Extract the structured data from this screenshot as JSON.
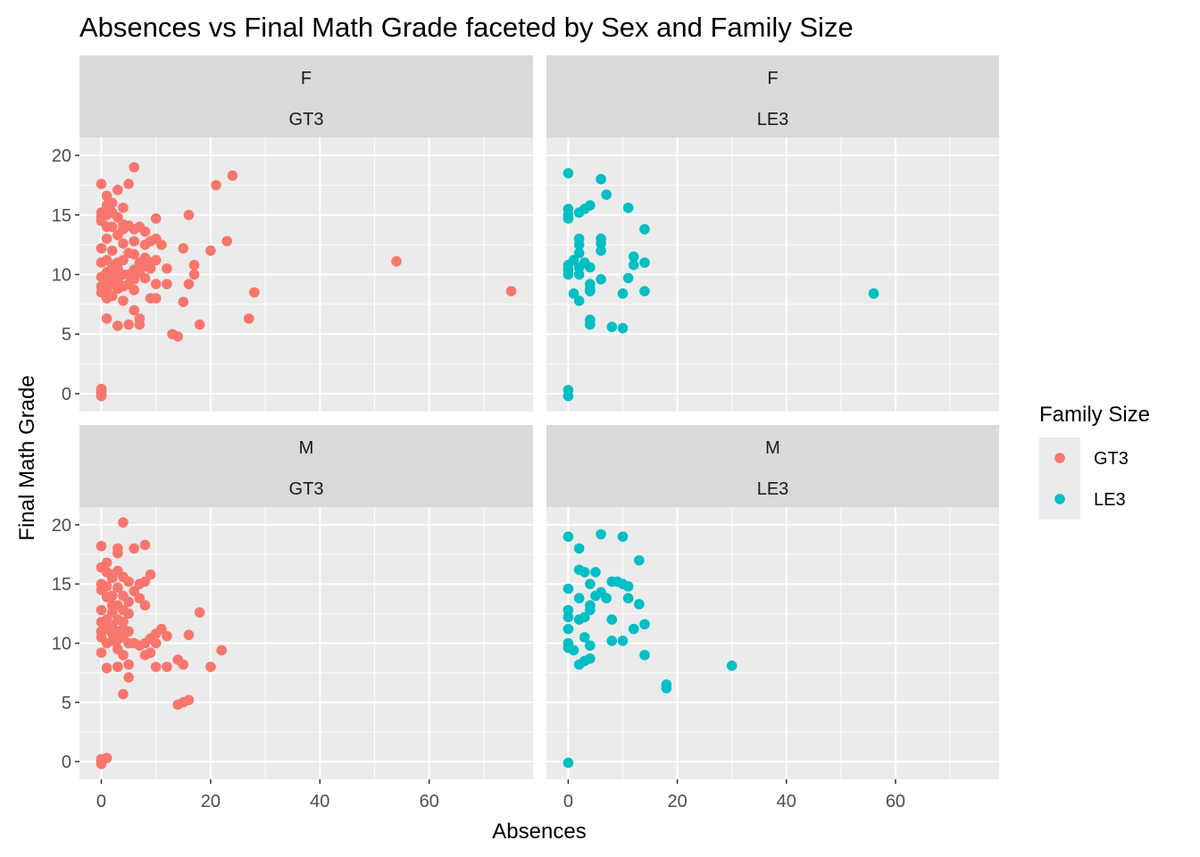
{
  "chart_data": {
    "type": "scatter",
    "title": "Absences vs Final Math Grade faceted by Sex and Family Size",
    "xlabel": "Absences",
    "ylabel": "Final Math Grade",
    "xlim": [
      -4,
      79
    ],
    "ylim": [
      -1.5,
      21.5
    ],
    "x_ticks": [
      0,
      20,
      40,
      60
    ],
    "y_ticks": [
      0,
      5,
      10,
      15,
      20
    ],
    "grid": true,
    "legend": {
      "title": "Family Size",
      "position": "right",
      "entries": [
        {
          "label": "GT3",
          "color": "#F8766D"
        },
        {
          "label": "LE3",
          "color": "#00BFC4"
        }
      ]
    },
    "facets": [
      {
        "sex": "F",
        "famsize": "GT3",
        "color": "#F8766D",
        "points": [
          [
            0,
            0
          ],
          [
            0,
            0.2
          ],
          [
            0,
            -0.2
          ],
          [
            0,
            0.4
          ],
          [
            0,
            12.2
          ],
          [
            0,
            14.8
          ],
          [
            0,
            15.2
          ],
          [
            0,
            9
          ],
          [
            0,
            9.8
          ],
          [
            0,
            11
          ],
          [
            0,
            8.5
          ],
          [
            0,
            17.6
          ],
          [
            0,
            14.5
          ],
          [
            1,
            16.6
          ],
          [
            1,
            15
          ],
          [
            1,
            8
          ],
          [
            1,
            10.2
          ],
          [
            1,
            9.5
          ],
          [
            1,
            6.3
          ],
          [
            1,
            13
          ],
          [
            1,
            14
          ],
          [
            1,
            15.8
          ],
          [
            1,
            11.2
          ],
          [
            1,
            8.8
          ],
          [
            2,
            16
          ],
          [
            2,
            14
          ],
          [
            2,
            10
          ],
          [
            2,
            10.8
          ],
          [
            2,
            12
          ],
          [
            2,
            9.2
          ],
          [
            2,
            8.2
          ],
          [
            2,
            15.2
          ],
          [
            3,
            17.1
          ],
          [
            3,
            11
          ],
          [
            3,
            10.5
          ],
          [
            3,
            14.8
          ],
          [
            3,
            9.6
          ],
          [
            3,
            8.8
          ],
          [
            3,
            5.7
          ],
          [
            3,
            13.3
          ],
          [
            4,
            10
          ],
          [
            4,
            11.2
          ],
          [
            4,
            9
          ],
          [
            4,
            12.6
          ],
          [
            4,
            14.2
          ],
          [
            4,
            7.8
          ],
          [
            4,
            13.8
          ],
          [
            4,
            15.6
          ],
          [
            5,
            11.8
          ],
          [
            5,
            10
          ],
          [
            5,
            5.8
          ],
          [
            5,
            17.6
          ],
          [
            5,
            9.2
          ],
          [
            5,
            14.1
          ],
          [
            6,
            19
          ],
          [
            6,
            13.8
          ],
          [
            6,
            12.8
          ],
          [
            6,
            11.7
          ],
          [
            6,
            10.4
          ],
          [
            6,
            9.6
          ],
          [
            6,
            8.7
          ],
          [
            6,
            7
          ],
          [
            7,
            14
          ],
          [
            7,
            11
          ],
          [
            7,
            10.2
          ],
          [
            7,
            6.3
          ],
          [
            7,
            5.8
          ],
          [
            8,
            12.5
          ],
          [
            8,
            10.7
          ],
          [
            8,
            9.7
          ],
          [
            8,
            13.6
          ],
          [
            8,
            11.4
          ],
          [
            9,
            11
          ],
          [
            9,
            10.5
          ],
          [
            9,
            8
          ],
          [
            9,
            12.8
          ],
          [
            10,
            14.7
          ],
          [
            10,
            13
          ],
          [
            10,
            11.2
          ],
          [
            10,
            9.2
          ],
          [
            10,
            8
          ],
          [
            11,
            12.5
          ],
          [
            12,
            9.2
          ],
          [
            12,
            10.5
          ],
          [
            13,
            5
          ],
          [
            14,
            4.8
          ],
          [
            15,
            12.2
          ],
          [
            15,
            7.7
          ],
          [
            16,
            15
          ],
          [
            16,
            9.2
          ],
          [
            17,
            10.8
          ],
          [
            17,
            10
          ],
          [
            18,
            5.8
          ],
          [
            20,
            12
          ],
          [
            21,
            17.5
          ],
          [
            23,
            12.8
          ],
          [
            24,
            18.3
          ],
          [
            27,
            6.3
          ],
          [
            28,
            8.5
          ],
          [
            54,
            11.1
          ],
          [
            75,
            8.6
          ]
        ]
      },
      {
        "sex": "F",
        "famsize": "LE3",
        "color": "#00BFC4",
        "points": [
          [
            0,
            -0.2
          ],
          [
            0,
            0.3
          ],
          [
            0,
            18.5
          ],
          [
            0,
            15.5
          ],
          [
            0,
            15
          ],
          [
            0,
            14.7
          ],
          [
            0,
            10.8
          ],
          [
            0,
            10
          ],
          [
            0,
            10.4
          ],
          [
            1,
            8.4
          ],
          [
            1,
            11.2
          ],
          [
            2,
            15.2
          ],
          [
            2,
            13
          ],
          [
            2,
            12.5
          ],
          [
            2,
            11.8
          ],
          [
            2,
            10.6
          ],
          [
            2,
            10
          ],
          [
            2,
            7.8
          ],
          [
            3,
            15.5
          ],
          [
            3,
            11
          ],
          [
            4,
            15.8
          ],
          [
            4,
            10.6
          ],
          [
            4,
            9.2
          ],
          [
            4,
            8.8
          ],
          [
            4,
            8.6
          ],
          [
            4,
            6.2
          ],
          [
            4,
            5.8
          ],
          [
            6,
            18
          ],
          [
            6,
            13
          ],
          [
            6,
            12.6
          ],
          [
            6,
            12
          ],
          [
            6,
            9.6
          ],
          [
            7,
            16.7
          ],
          [
            8,
            5.6
          ],
          [
            10,
            5.5
          ],
          [
            10,
            8.4
          ],
          [
            11,
            15.6
          ],
          [
            11,
            9.7
          ],
          [
            12,
            11.5
          ],
          [
            12,
            10.8
          ],
          [
            14,
            13.8
          ],
          [
            14,
            11
          ],
          [
            14,
            8.6
          ],
          [
            56,
            8.4
          ]
        ]
      },
      {
        "sex": "M",
        "famsize": "GT3",
        "color": "#F8766D",
        "points": [
          [
            0,
            -0.2
          ],
          [
            0,
            0
          ],
          [
            0,
            0.2
          ],
          [
            0,
            18.2
          ],
          [
            0,
            16.4
          ],
          [
            0,
            15
          ],
          [
            0,
            14.5
          ],
          [
            0,
            12.8
          ],
          [
            0,
            11.8
          ],
          [
            0,
            11
          ],
          [
            0,
            10.5
          ],
          [
            0,
            9.2
          ],
          [
            1,
            16.8
          ],
          [
            1,
            16
          ],
          [
            1,
            14.8
          ],
          [
            1,
            13.9
          ],
          [
            1,
            12
          ],
          [
            1,
            11.2
          ],
          [
            1,
            10
          ],
          [
            1,
            7.9
          ],
          [
            1,
            0.3
          ],
          [
            2,
            15.5
          ],
          [
            2,
            14
          ],
          [
            2,
            13.2
          ],
          [
            2,
            12.6
          ],
          [
            2,
            11.5
          ],
          [
            2,
            10.8
          ],
          [
            2,
            10.2
          ],
          [
            2,
            15.8
          ],
          [
            3,
            18
          ],
          [
            3,
            17.6
          ],
          [
            3,
            16.1
          ],
          [
            3,
            14.7
          ],
          [
            3,
            13.2
          ],
          [
            3,
            12
          ],
          [
            3,
            11
          ],
          [
            3,
            10.3
          ],
          [
            3,
            9.5
          ],
          [
            3,
            8
          ],
          [
            4,
            20.2
          ],
          [
            4,
            15.6
          ],
          [
            4,
            14
          ],
          [
            4,
            12.8
          ],
          [
            4,
            11.8
          ],
          [
            4,
            11.2
          ],
          [
            4,
            10.5
          ],
          [
            4,
            9
          ],
          [
            4,
            5.7
          ],
          [
            5,
            15.2
          ],
          [
            5,
            13.5
          ],
          [
            5,
            12.5
          ],
          [
            5,
            11
          ],
          [
            5,
            10
          ],
          [
            5,
            8.2
          ],
          [
            5,
            7.1
          ],
          [
            6,
            18
          ],
          [
            6,
            14.4
          ],
          [
            6,
            10
          ],
          [
            7,
            15
          ],
          [
            7,
            13.8
          ],
          [
            7,
            9.8
          ],
          [
            8,
            18.3
          ],
          [
            8,
            15.2
          ],
          [
            8,
            13.2
          ],
          [
            8,
            10
          ],
          [
            8,
            9
          ],
          [
            9,
            15.8
          ],
          [
            9,
            10.4
          ],
          [
            9,
            9.2
          ],
          [
            10,
            10.8
          ],
          [
            10,
            10
          ],
          [
            10,
            8
          ],
          [
            11,
            11.2
          ],
          [
            12,
            10.6
          ],
          [
            12,
            8
          ],
          [
            14,
            8.6
          ],
          [
            14,
            4.8
          ],
          [
            15,
            8.2
          ],
          [
            15,
            5
          ],
          [
            16,
            10.7
          ],
          [
            16,
            5.2
          ],
          [
            18,
            12.6
          ],
          [
            20,
            8
          ],
          [
            22,
            9.4
          ]
        ]
      },
      {
        "sex": "M",
        "famsize": "LE3",
        "color": "#00BFC4",
        "points": [
          [
            0,
            19
          ],
          [
            0,
            14.6
          ],
          [
            0,
            12.8
          ],
          [
            0,
            12.2
          ],
          [
            0,
            11.2
          ],
          [
            0,
            10
          ],
          [
            0,
            9.6
          ],
          [
            0,
            -0.1
          ],
          [
            1,
            9.4
          ],
          [
            2,
            18
          ],
          [
            2,
            16.2
          ],
          [
            2,
            13.8
          ],
          [
            2,
            12
          ],
          [
            2,
            8.2
          ],
          [
            3,
            16
          ],
          [
            3,
            12.2
          ],
          [
            3,
            10.5
          ],
          [
            3,
            8.5
          ],
          [
            4,
            15
          ],
          [
            4,
            13.2
          ],
          [
            4,
            12.8
          ],
          [
            4,
            9.8
          ],
          [
            4,
            8.7
          ],
          [
            5,
            16
          ],
          [
            5,
            14
          ],
          [
            6,
            19.2
          ],
          [
            6,
            14.3
          ],
          [
            7,
            13.8
          ],
          [
            8,
            15.2
          ],
          [
            8,
            12
          ],
          [
            8,
            10.2
          ],
          [
            9,
            15.2
          ],
          [
            10,
            19
          ],
          [
            10,
            15
          ],
          [
            10,
            10.2
          ],
          [
            11,
            14.8
          ],
          [
            11,
            13.8
          ],
          [
            12,
            11.2
          ],
          [
            13,
            17
          ],
          [
            13,
            13.3
          ],
          [
            14,
            11.6
          ],
          [
            14,
            9
          ],
          [
            18,
            6.5
          ],
          [
            18,
            6.2
          ],
          [
            30,
            8.1
          ]
        ]
      }
    ]
  }
}
